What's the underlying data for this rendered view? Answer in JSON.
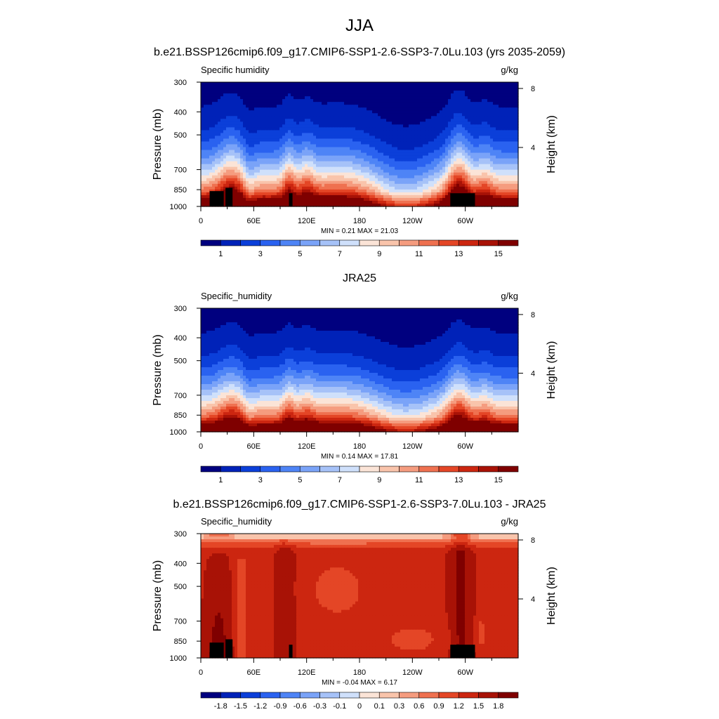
{
  "page": {
    "title": "JJA"
  },
  "colorbars": {
    "absolute": {
      "labels": [
        "1",
        "3",
        "5",
        "7",
        "9",
        "11",
        "13",
        "15"
      ],
      "colors": [
        "#00007f",
        "#0022b8",
        "#0b3fd9",
        "#2a62f0",
        "#4e84f6",
        "#7aa3f8",
        "#a6c2f8",
        "#cfe0fb",
        "#fbe4d7",
        "#f9c4ab",
        "#f59c7f",
        "#ef7150",
        "#e44626",
        "#cc2610",
        "#a81206",
        "#7f0000"
      ]
    },
    "difference": {
      "labels": [
        "-1.8",
        "-1.5",
        "-1.2",
        "-0.9",
        "-0.6",
        "-0.3",
        "-0.1",
        "0",
        "0.1",
        "0.3",
        "0.6",
        "0.9",
        "1.2",
        "1.5",
        "1.8"
      ],
      "colors": [
        "#00007f",
        "#0022b8",
        "#0b3fd9",
        "#2a62f0",
        "#4e84f6",
        "#7aa3f8",
        "#a6c2f8",
        "#cfe0fb",
        "#fbe4d7",
        "#f9c4ab",
        "#f59c7f",
        "#ef7150",
        "#e44626",
        "#cc2610",
        "#a81206",
        "#7f0000"
      ]
    }
  },
  "chart_data": [
    {
      "type": "heatmap",
      "title": "b.e21.BSSP126cmip6.f09_g17.CMIP6-SSP1-2.6-SSP3-7.0Lu.103 (yrs 2035-2059)",
      "left_label": "Specific humidity",
      "right_label": "g/kg",
      "ylabel": "Pressure (mb)",
      "y2label": "Height (km)",
      "x_ticks": [
        "0",
        "60E",
        "120E",
        "180",
        "120W",
        "60W"
      ],
      "x_tick_values": [
        0,
        60,
        120,
        180,
        240,
        300
      ],
      "xlim": [
        0,
        360
      ],
      "y_ticks": [
        "300",
        "400",
        "500",
        "700",
        "850",
        "1000"
      ],
      "y_tick_values": [
        300,
        400,
        500,
        700,
        850,
        1000
      ],
      "ylim": [
        1000,
        300
      ],
      "y_scale": "log",
      "y2_ticks": [
        "8",
        "4"
      ],
      "y2_tick_values": [
        8,
        4
      ],
      "min": "0.21",
      "max": "21.03",
      "stats_text": "MIN =  0.21  MAX =  21.03",
      "colorbar": "absolute",
      "field": "humidity",
      "topography": true
    },
    {
      "type": "heatmap",
      "title": "JRA25",
      "left_label": "Specific_humidity",
      "right_label": "g/kg",
      "ylabel": "Pressure (mb)",
      "y2label": "Height (km)",
      "x_ticks": [
        "0",
        "60E",
        "120E",
        "180",
        "120W",
        "60W"
      ],
      "x_tick_values": [
        0,
        60,
        120,
        180,
        240,
        300
      ],
      "xlim": [
        0,
        360
      ],
      "y_ticks": [
        "300",
        "400",
        "500",
        "700",
        "850",
        "1000"
      ],
      "y_tick_values": [
        300,
        400,
        500,
        700,
        850,
        1000
      ],
      "ylim": [
        1000,
        300
      ],
      "y_scale": "log",
      "y2_ticks": [
        "8",
        "4"
      ],
      "y2_tick_values": [
        8,
        4
      ],
      "min": "0.14",
      "max": "17.81",
      "stats_text": "MIN =  0.14  MAX =  17.81",
      "colorbar": "absolute",
      "field": "humidity",
      "topography": false
    },
    {
      "type": "heatmap",
      "title": "b.e21.BSSP126cmip6.f09_g17.CMIP6-SSP1-2.6-SSP3-7.0Lu.103 - JRA25",
      "left_label": "Specific_humidity",
      "right_label": "g/kg",
      "ylabel": "Pressure (mb)",
      "y2label": "Height (km)",
      "x_ticks": [
        "0",
        "60E",
        "120E",
        "180",
        "120W",
        "60W"
      ],
      "x_tick_values": [
        0,
        60,
        120,
        180,
        240,
        300
      ],
      "xlim": [
        0,
        360
      ],
      "y_ticks": [
        "300",
        "400",
        "500",
        "700",
        "850",
        "1000"
      ],
      "y_tick_values": [
        300,
        400,
        500,
        700,
        850,
        1000
      ],
      "ylim": [
        1000,
        300
      ],
      "y_scale": "log",
      "y2_ticks": [
        "8",
        "4"
      ],
      "y2_tick_values": [
        8,
        4
      ],
      "min": "-0.04",
      "max": "6.17",
      "stats_text": "MIN = -0.04  MAX =  6.17",
      "colorbar": "difference",
      "field": "difference",
      "topography": true
    }
  ]
}
